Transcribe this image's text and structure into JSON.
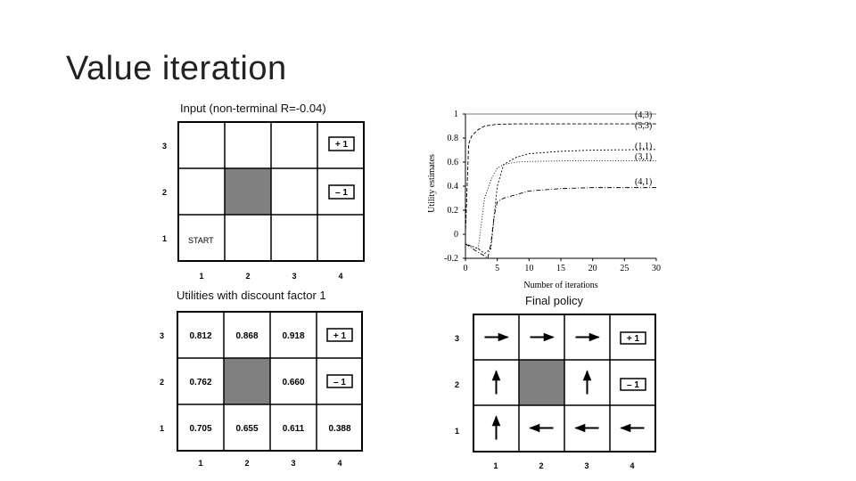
{
  "slide": {
    "title": "Value iteration"
  },
  "captions": {
    "input": "Input (non-terminal R=-0.04)",
    "utilities": "Utilities with discount factor 1",
    "policy": "Final policy"
  },
  "grid_axis": {
    "cols": [
      "1",
      "2",
      "3",
      "4"
    ],
    "rows": [
      "3",
      "2",
      "1"
    ]
  },
  "input_grid": {
    "start_label": "START",
    "plus_label": "+ 1",
    "minus_label": "– 1"
  },
  "utility_grid": {
    "r3": [
      "0.812",
      "0.868",
      "0.918"
    ],
    "r2": [
      "0.762",
      "0.660"
    ],
    "r1": [
      "0.705",
      "0.655",
      "0.611",
      "0.388"
    ],
    "plus_label": "+ 1",
    "minus_label": "– 1"
  },
  "policy_grid": {
    "plus_label": "+ 1",
    "minus_label": "– 1",
    "arrows": {
      "r3": [
        "right",
        "right",
        "right"
      ],
      "r2": [
        "up",
        "up"
      ],
      "r1": [
        "up",
        "left",
        "left",
        "left"
      ]
    }
  },
  "chart_data": {
    "type": "line",
    "xlabel": "Number of iterations",
    "ylabel": "Utility estimates",
    "xlim": [
      0,
      30
    ],
    "ylim": [
      -0.2,
      1
    ],
    "xticks": [
      0,
      5,
      10,
      15,
      20,
      25,
      30
    ],
    "yticks": [
      -0.2,
      0,
      0.2,
      0.4,
      0.6,
      0.8,
      1
    ],
    "ytick_labels": [
      "-0.2",
      "0",
      "0.2",
      "0.4",
      "0.6",
      "0.8",
      "1"
    ],
    "series": [
      {
        "name": "(4,3)",
        "x": [
          0,
          30
        ],
        "y": [
          1,
          1
        ]
      },
      {
        "name": "(3,3)",
        "x": [
          0,
          0.5,
          1,
          2,
          3,
          5,
          8,
          30
        ],
        "y": [
          0,
          0.75,
          0.82,
          0.87,
          0.9,
          0.915,
          0.918,
          0.918
        ]
      },
      {
        "name": "(1,1)",
        "x": [
          0,
          2,
          3,
          4,
          5,
          6,
          8,
          10,
          15,
          20,
          30
        ],
        "y": [
          -0.08,
          -0.12,
          -0.16,
          -0.12,
          0.4,
          0.58,
          0.64,
          0.67,
          0.69,
          0.7,
          0.705
        ]
      },
      {
        "name": "(3,1)",
        "x": [
          0,
          2,
          3,
          4,
          5,
          6,
          8,
          10,
          15,
          20,
          30
        ],
        "y": [
          -0.08,
          -0.12,
          0.3,
          0.45,
          0.55,
          0.58,
          0.6,
          0.605,
          0.61,
          0.611,
          0.611
        ]
      },
      {
        "name": "(4,1)",
        "x": [
          0,
          2,
          3,
          3.5,
          4,
          4.5,
          5,
          6,
          8,
          10,
          15,
          20,
          30
        ],
        "y": [
          -0.08,
          -0.15,
          -0.18,
          -0.2,
          -0.08,
          0.15,
          0.27,
          0.3,
          0.33,
          0.36,
          0.38,
          0.388,
          0.388
        ]
      }
    ]
  }
}
